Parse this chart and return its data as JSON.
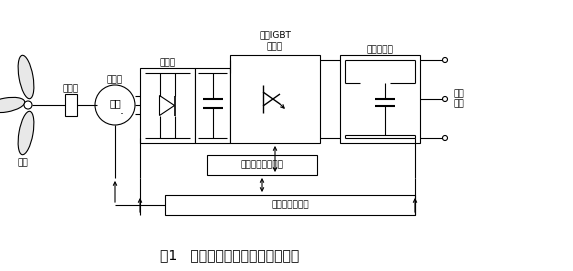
{
  "title": "图1   变速风力发电系统的典型结构",
  "bg_color": "#ffffff",
  "line_color": "#000000",
  "labels": {
    "gearbox": "齿轮箱",
    "generator": "发电机",
    "three_phase": "三相",
    "rectifier": "整流器",
    "inverter_label": "桥式IGBT\n逆变器",
    "filter": "输出滤波器",
    "grid": "公用\n电网",
    "wind_turbine": "风机",
    "inverter_ctrl": "逆变器控制及保护",
    "embedded_ctrl": "嵌入式控制系统"
  },
  "font_size": 6.5,
  "title_font_size": 10
}
